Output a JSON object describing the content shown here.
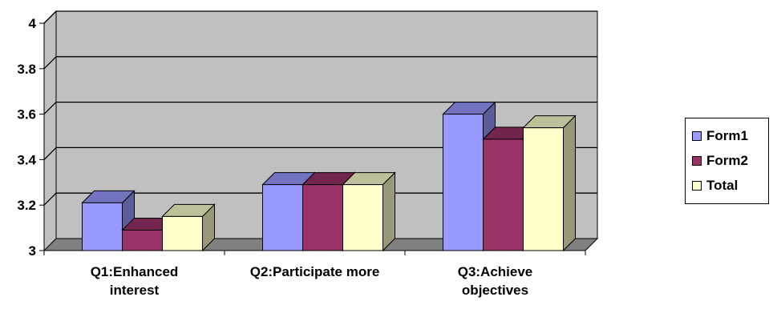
{
  "chart_data": {
    "type": "bar",
    "categories": [
      [
        "Q1:Enhanced",
        "interest"
      ],
      [
        "Q2:Participate more"
      ],
      [
        "Q3:Achieve",
        "objectives"
      ]
    ],
    "series": [
      {
        "name": "Form1",
        "values": [
          3.21,
          3.29,
          3.6
        ],
        "color": "#9999FF",
        "side": "#5C5C99",
        "top": "#7373BF"
      },
      {
        "name": "Form2",
        "values": [
          3.09,
          3.29,
          3.49
        ],
        "color": "#993366",
        "side": "#5C1F3D",
        "top": "#73264D"
      },
      {
        "name": "Total",
        "values": [
          3.15,
          3.29,
          3.54
        ],
        "color": "#FFFFCC",
        "side": "#99997A",
        "top": "#BFBF99"
      }
    ],
    "ylim": [
      3,
      4
    ],
    "yticks": [
      "3",
      "3.2",
      "3.4",
      "3.6",
      "3.8",
      "4"
    ],
    "grid": true,
    "legend_position": "right",
    "wall_color": "#C0C0C0",
    "floor_color": "#808080"
  }
}
